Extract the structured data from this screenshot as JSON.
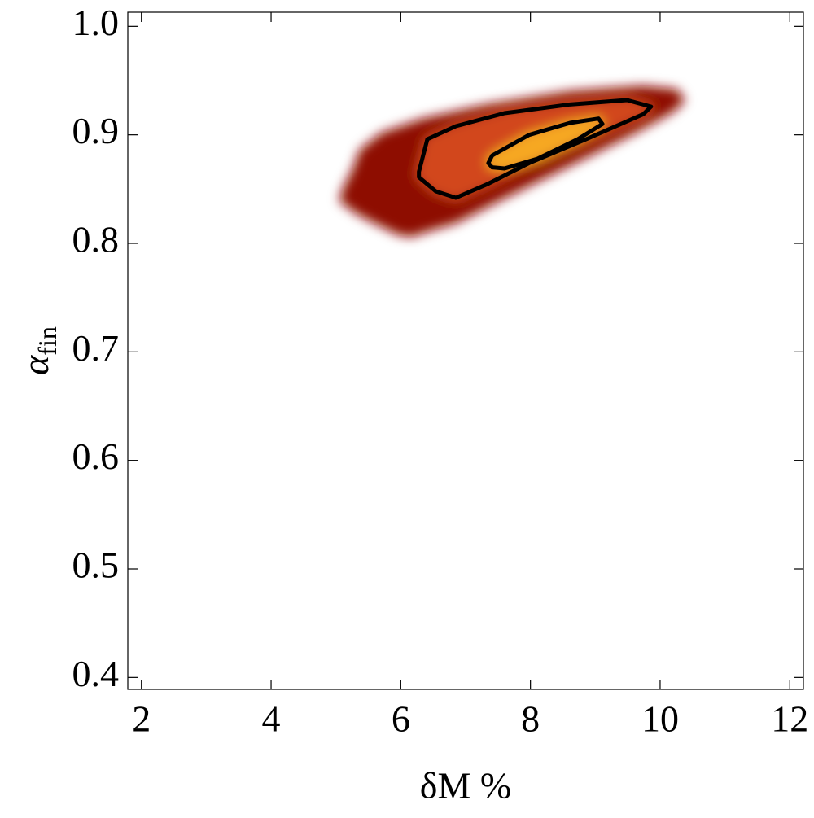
{
  "chart_data": {
    "type": "density-contour",
    "x_label": "δM %",
    "y_label": "α",
    "y_label_sub": "fin",
    "xlim": [
      1.79,
      12.21
    ],
    "ylim": [
      0.389,
      1.013
    ],
    "xticks": [
      2,
      4,
      6,
      8,
      10,
      12
    ],
    "yticks": [
      0.4,
      0.5,
      0.6,
      0.7,
      0.8,
      0.9,
      {
        "value": 1,
        "label": "1.0"
      }
    ],
    "grid": false,
    "regions": [
      {
        "color": "#8e0c06",
        "x": [
          5.09,
          5.15,
          5.28,
          5.4,
          5.72,
          6.35,
          7.35,
          8.61,
          9.74,
          10.24,
          10.34,
          10.18,
          9.61,
          8.61,
          7.6,
          6.85,
          6.35,
          6.16,
          5.97,
          5.59,
          5.34
        ],
        "y": [
          0.84,
          0.851,
          0.866,
          0.885,
          0.9,
          0.913,
          0.926,
          0.938,
          0.943,
          0.94,
          0.932,
          0.923,
          0.904,
          0.874,
          0.844,
          0.821,
          0.812,
          0.808,
          0.81,
          0.821,
          0.829
        ]
      },
      {
        "color": "#d2471a",
        "contour_color": "#000000",
        "x": [
          6.28,
          6.41,
          6.85,
          7.6,
          8.61,
          9.49,
          9.86,
          9.74,
          8.86,
          7.98,
          7.35,
          6.85,
          6.54,
          6.28
        ],
        "y": [
          0.866,
          0.896,
          0.908,
          0.92,
          0.928,
          0.932,
          0.926,
          0.919,
          0.896,
          0.874,
          0.855,
          0.842,
          0.848,
          0.861
        ]
      },
      {
        "color": "#f6a824",
        "contour_color": "#000000",
        "x": [
          7.35,
          7.41,
          7.98,
          8.61,
          9.05,
          9.11,
          8.73,
          8.11,
          7.6,
          7.41
        ],
        "y": [
          0.874,
          0.881,
          0.9,
          0.911,
          0.915,
          0.91,
          0.896,
          0.878,
          0.869,
          0.87
        ]
      }
    ]
  }
}
